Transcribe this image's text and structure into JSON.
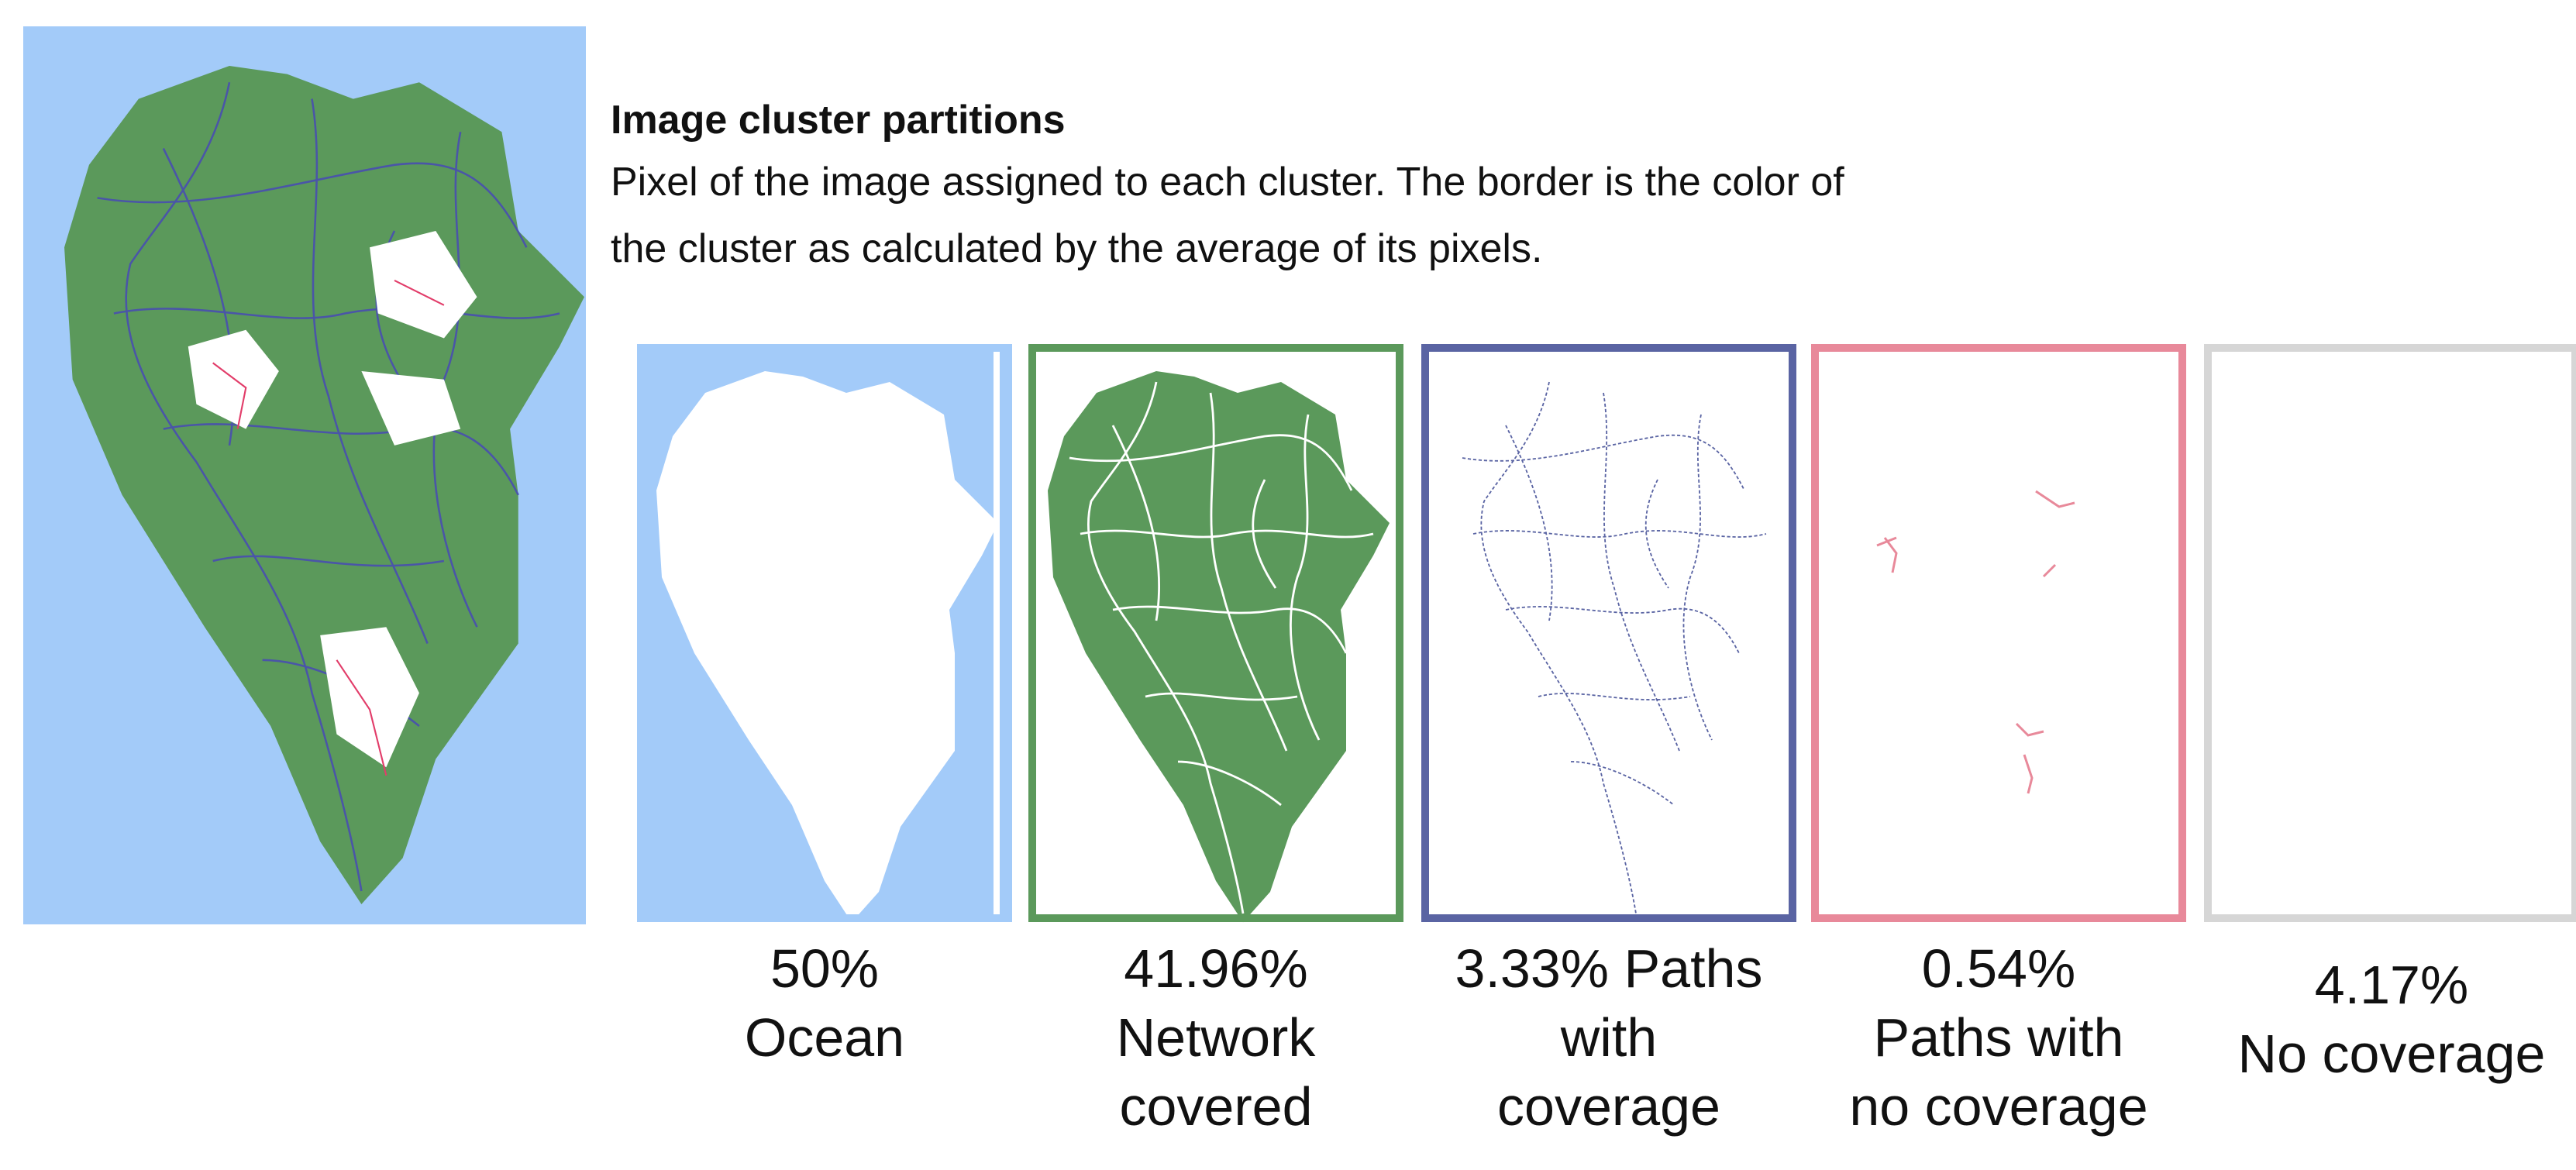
{
  "header": {
    "title": "Image cluster partitions",
    "description_lines": [
      "Pixel of the image assigned to each cluster. The border is the color of",
      "the cluster as calculated by the average of its pixels."
    ]
  },
  "clusters": [
    {
      "caption_lines": [
        "50%",
        "Ocean"
      ],
      "border_color": "#a3cbf9"
    },
    {
      "caption_lines": [
        "41.96%",
        "Network",
        "covered"
      ],
      "border_color": "#5b995b"
    },
    {
      "caption_lines": [
        "3.33% Paths",
        "with",
        "coverage"
      ],
      "border_color": "#5a64a3"
    },
    {
      "caption_lines": [
        "0.54%",
        "Paths with",
        "no coverage"
      ],
      "border_color": "#e8899a"
    },
    {
      "caption_lines": [
        "4.17%",
        "No coverage"
      ],
      "border_color": "#d6d6d6"
    }
  ]
}
